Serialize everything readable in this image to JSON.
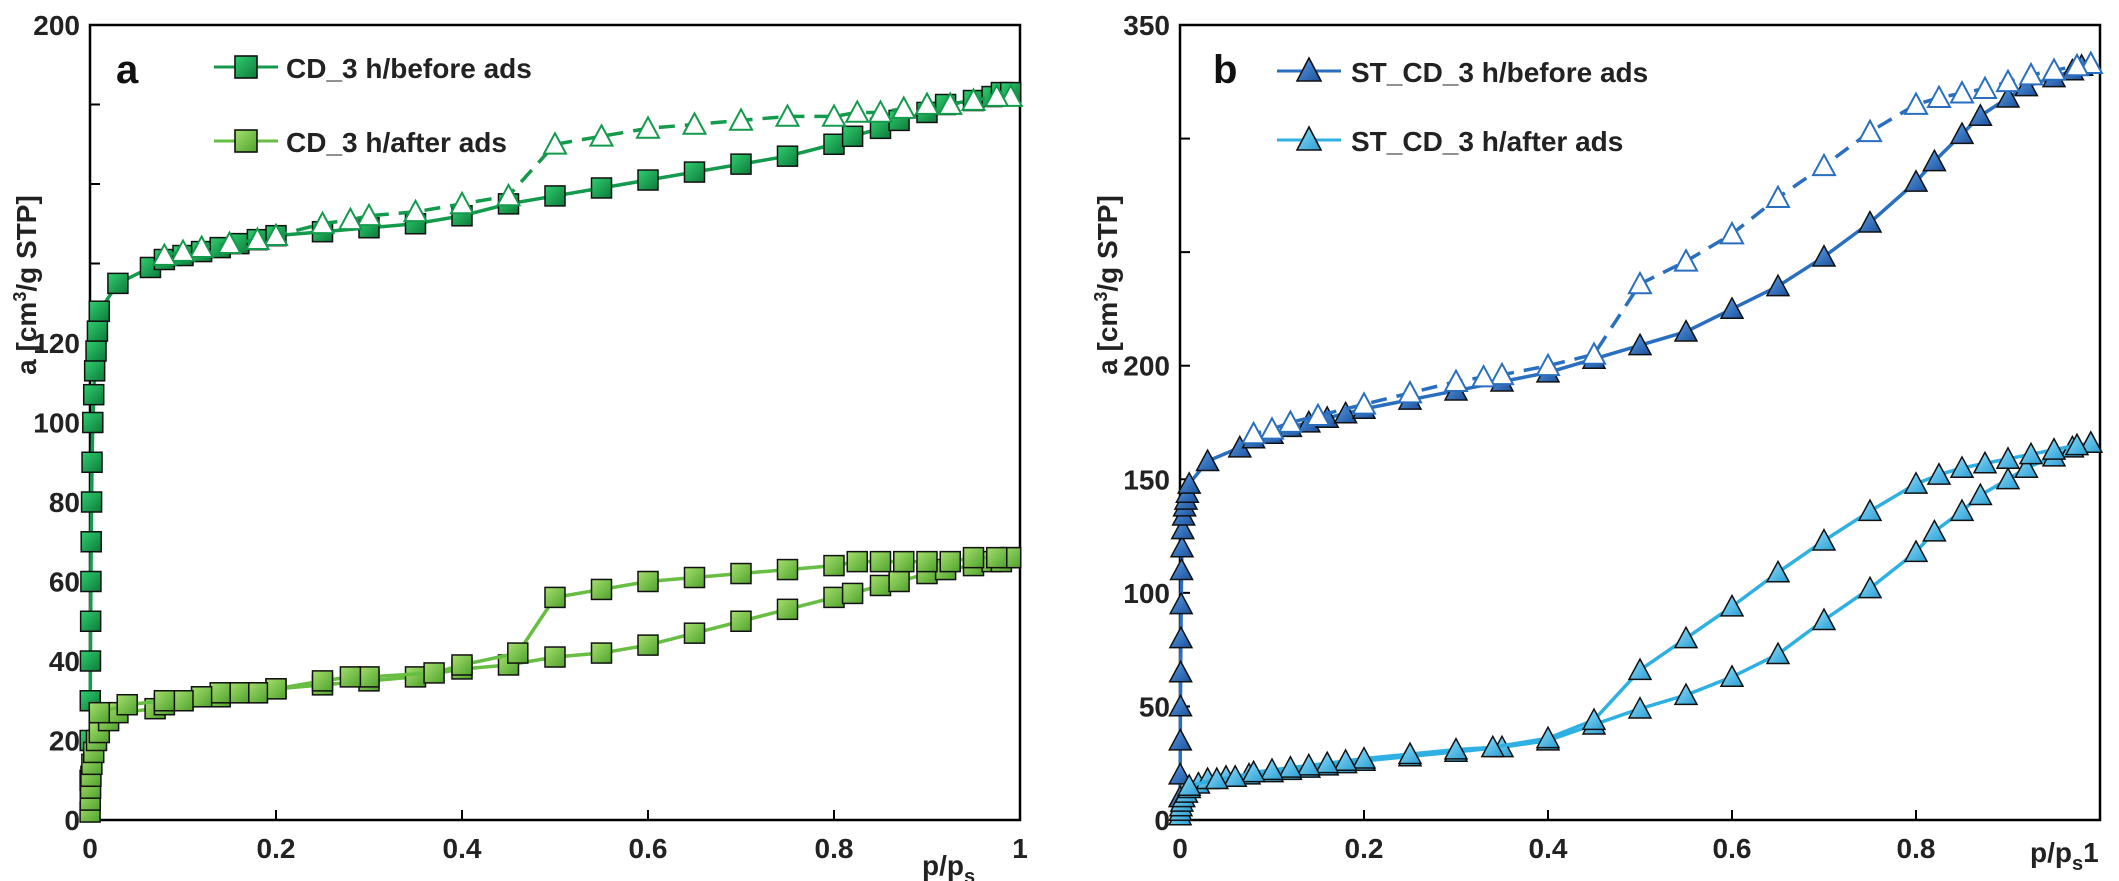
{
  "chart_data": [
    {
      "type": "line",
      "panel_label": "a",
      "ylabel_parts": [
        "a [cm",
        "3",
        "/g STP]"
      ],
      "xlabel_parts": [
        "p/p",
        "s"
      ],
      "xlim": [
        0,
        1
      ],
      "ylim": [
        0,
        200
      ],
      "x_ticks": [
        "0",
        "0.2",
        "0.4",
        "0.6",
        "0.8",
        "1"
      ],
      "y_ticks": [
        "0",
        "20",
        "40",
        "60",
        "80",
        "100",
        "120",
        "200"
      ],
      "legend": [
        "CD_3 h/before ads",
        "CD_3 h/after ads"
      ],
      "colors": {
        "before": "#149a4c",
        "after": "#67be42"
      },
      "series": [
        {
          "name": "CD_3 h/before ads (adsorption)",
          "style": "solid",
          "marker": "square",
          "filled": true,
          "x": [
            0.0001,
            0.0002,
            0.0003,
            0.0005,
            0.0007,
            0.001,
            0.0013,
            0.0017,
            0.0022,
            0.003,
            0.004,
            0.005,
            0.0065,
            0.008,
            0.01,
            0.03,
            0.065,
            0.08,
            0.1,
            0.12,
            0.14,
            0.16,
            0.18,
            0.2,
            0.25,
            0.3,
            0.35,
            0.4,
            0.45,
            0.5,
            0.55,
            0.6,
            0.65,
            0.7,
            0.75,
            0.8,
            0.82,
            0.85,
            0.87,
            0.9,
            0.92,
            0.95,
            0.97,
            0.98,
            0.99
          ],
          "y": [
            10,
            20,
            30,
            40,
            50,
            60,
            70,
            80,
            90,
            100,
            107,
            113,
            118,
            123,
            128,
            135,
            139,
            141,
            142,
            143,
            144,
            145,
            146,
            147,
            148,
            149,
            150,
            152,
            155,
            157,
            159,
            161,
            163,
            165,
            167,
            170,
            172,
            174,
            176,
            178,
            180,
            181,
            182,
            183,
            183
          ]
        },
        {
          "name": "CD_3 h/before ads (desorption)",
          "style": "dashed",
          "marker": "triangle",
          "filled": false,
          "x": [
            0.99,
            0.975,
            0.95,
            0.925,
            0.9,
            0.875,
            0.85,
            0.825,
            0.8,
            0.75,
            0.7,
            0.65,
            0.6,
            0.55,
            0.5,
            0.45,
            0.4,
            0.35,
            0.3,
            0.28,
            0.25,
            0.2,
            0.18,
            0.15,
            0.12,
            0.1,
            0.08
          ],
          "y": [
            182,
            182,
            181,
            180,
            180,
            179,
            178,
            178,
            177,
            177,
            176,
            175,
            174,
            172,
            170,
            157,
            155,
            153,
            152,
            151,
            150,
            147,
            146,
            145,
            144,
            143,
            142
          ]
        },
        {
          "name": "CD_3 h/after ads (adsorption)",
          "style": "solid",
          "marker": "square",
          "filled": true,
          "x": [
            0.0001,
            0.0003,
            0.0006,
            0.001,
            0.002,
            0.004,
            0.007,
            0.01,
            0.02,
            0.03,
            0.07,
            0.08,
            0.1,
            0.12,
            0.14,
            0.16,
            0.18,
            0.2,
            0.25,
            0.3,
            0.35,
            0.4,
            0.45,
            0.5,
            0.55,
            0.6,
            0.65,
            0.7,
            0.75,
            0.8,
            0.82,
            0.85,
            0.87,
            0.9,
            0.92,
            0.95,
            0.97,
            0.98,
            0.99
          ],
          "y": [
            2,
            5,
            8,
            11,
            14,
            17,
            20,
            22,
            25,
            27,
            28,
            29,
            30,
            31,
            31,
            32,
            32,
            33,
            34,
            35,
            36,
            38,
            39,
            41,
            42,
            44,
            47,
            50,
            53,
            56,
            57,
            59,
            60,
            62,
            63,
            64,
            65,
            65,
            66
          ]
        },
        {
          "name": "CD_3 h/after ads (desorption)",
          "style": "solid",
          "marker": "square",
          "filled": true,
          "x": [
            0.99,
            0.975,
            0.95,
            0.925,
            0.9,
            0.875,
            0.85,
            0.825,
            0.8,
            0.75,
            0.7,
            0.65,
            0.6,
            0.55,
            0.5,
            0.46,
            0.4,
            0.37,
            0.3,
            0.28,
            0.25,
            0.2,
            0.18,
            0.16,
            0.14,
            0.12,
            0.1,
            0.08,
            0.04,
            0.01
          ],
          "y": [
            66,
            66,
            66,
            65,
            65,
            65,
            65,
            65,
            64,
            63,
            62,
            61,
            60,
            58,
            56,
            42,
            39,
            37,
            36,
            36,
            35,
            33,
            32,
            32,
            32,
            31,
            30,
            30,
            29,
            27
          ]
        }
      ]
    },
    {
      "type": "line",
      "panel_label": "b",
      "ylabel_parts": [
        "a [cm",
        "3",
        "/g STP]"
      ],
      "xlabel_parts": [
        "p/p",
        "s",
        "1"
      ],
      "xlim": [
        0,
        1
      ],
      "ylim": [
        0,
        350
      ],
      "x_ticks": [
        "0",
        "0.2",
        "0.4",
        "0.6",
        "0.8"
      ],
      "y_ticks": [
        "0",
        "50",
        "100",
        "150",
        "200",
        "350"
      ],
      "legend": [
        "ST_CD_3 h/before ads",
        "ST_CD_3 h/after ads"
      ],
      "colors": {
        "before": "#2a6fbf",
        "after": "#2fb0e2"
      },
      "series": [
        {
          "name": "ST_CD_3 h/before ads (adsorption)",
          "style": "solid",
          "marker": "triangle",
          "filled": true,
          "x": [
            0.0001,
            0.0002,
            0.0003,
            0.0005,
            0.0007,
            0.001,
            0.0013,
            0.0017,
            0.0022,
            0.003,
            0.004,
            0.005,
            0.0065,
            0.008,
            0.01,
            0.03,
            0.065,
            0.08,
            0.1,
            0.12,
            0.14,
            0.16,
            0.18,
            0.2,
            0.25,
            0.3,
            0.35,
            0.4,
            0.45,
            0.5,
            0.55,
            0.6,
            0.65,
            0.7,
            0.75,
            0.8,
            0.82,
            0.85,
            0.87,
            0.9,
            0.92,
            0.95,
            0.97,
            0.98,
            0.99
          ],
          "y": [
            10,
            20,
            35,
            50,
            65,
            80,
            95,
            110,
            120,
            128,
            134,
            138,
            141,
            144,
            148,
            158,
            164,
            168,
            170,
            173,
            175,
            177,
            179,
            181,
            185,
            189,
            193,
            197,
            203,
            209,
            215,
            225,
            235,
            248,
            263,
            281,
            290,
            302,
            310,
            318,
            323,
            327,
            330,
            332,
            333
          ]
        },
        {
          "name": "ST_CD_3 h/before ads (desorption)",
          "style": "dashed",
          "marker": "triangle",
          "filled": false,
          "x": [
            0.99,
            0.975,
            0.95,
            0.925,
            0.9,
            0.875,
            0.85,
            0.825,
            0.8,
            0.75,
            0.7,
            0.65,
            0.6,
            0.55,
            0.5,
            0.45,
            0.4,
            0.35,
            0.33,
            0.3,
            0.25,
            0.2,
            0.15,
            0.12,
            0.1,
            0.08
          ],
          "y": [
            333,
            332,
            330,
            328,
            325,
            322,
            320,
            318,
            315,
            303,
            288,
            274,
            258,
            246,
            236,
            205,
            200,
            196,
            195,
            193,
            188,
            183,
            178,
            175,
            172,
            170
          ]
        },
        {
          "name": "ST_CD_3 h/after ads (adsorption)",
          "style": "solid",
          "marker": "triangle",
          "filled": true,
          "x": [
            0.0001,
            0.0005,
            0.001,
            0.002,
            0.004,
            0.007,
            0.01,
            0.02,
            0.03,
            0.05,
            0.075,
            0.1,
            0.12,
            0.14,
            0.16,
            0.18,
            0.2,
            0.25,
            0.3,
            0.35,
            0.4,
            0.45,
            0.5,
            0.55,
            0.6,
            0.65,
            0.7,
            0.75,
            0.8,
            0.82,
            0.85,
            0.87,
            0.9,
            0.92,
            0.95,
            0.97,
            0.99
          ],
          "y": [
            2,
            4,
            6,
            8,
            10,
            12,
            14,
            16,
            18,
            19,
            20,
            21,
            22,
            23,
            24,
            25,
            26,
            28,
            30,
            32,
            35,
            42,
            49,
            55,
            63,
            73,
            88,
            102,
            118,
            127,
            136,
            143,
            150,
            155,
            160,
            164,
            166
          ]
        },
        {
          "name": "ST_CD_3 h/after ads (desorption)",
          "style": "solid",
          "marker": "triangle",
          "filled": true,
          "x": [
            0.99,
            0.975,
            0.95,
            0.925,
            0.9,
            0.875,
            0.85,
            0.825,
            0.8,
            0.75,
            0.7,
            0.65,
            0.6,
            0.55,
            0.5,
            0.45,
            0.4,
            0.34,
            0.3,
            0.25,
            0.2,
            0.18,
            0.16,
            0.14,
            0.12,
            0.1,
            0.08,
            0.06,
            0.04,
            0.01
          ],
          "y": [
            166,
            165,
            163,
            161,
            159,
            157,
            155,
            152,
            148,
            136,
            123,
            109,
            94,
            80,
            66,
            44,
            36,
            32,
            31,
            29,
            27,
            26,
            25,
            24,
            23,
            22,
            21,
            19,
            18,
            15
          ]
        }
      ]
    }
  ]
}
